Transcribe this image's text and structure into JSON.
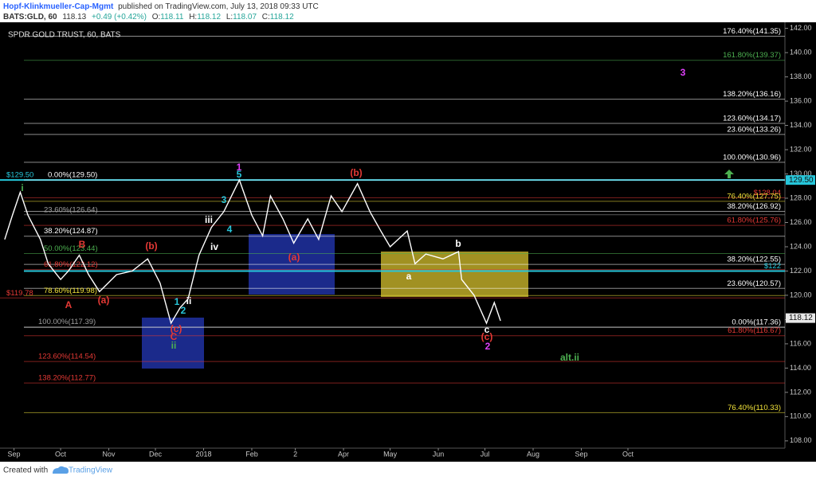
{
  "header": {
    "author": "Hopf-Klinkmueller-Cap-Mgmt",
    "published": "published on TradingView.com, July 13, 2018 09:33 UTC",
    "symbol": "BATS:GLD, 60",
    "last": "118.13",
    "change": "+0.49 (+0.42%)",
    "o_label": "O:",
    "open": "118.11",
    "h_label": "H:",
    "high": "118.12",
    "l_label": "L:",
    "low": "118.07",
    "c_label": "C:",
    "close": "118.12"
  },
  "footer": {
    "created_with": "Created with",
    "brand": "TradingView"
  },
  "chart_data": {
    "type": "line",
    "title": "SPDR GOLD TRUST, 60, BATS",
    "color": "#ffffff",
    "x": [
      -6,
      -1,
      4,
      9,
      17,
      22,
      30,
      35,
      42,
      48,
      55,
      66,
      76,
      86,
      94,
      101,
      107,
      112,
      119,
      127,
      135,
      145,
      153,
      160,
      165,
      173,
      180,
      189,
      196,
      204,
      211,
      221,
      229,
      236,
      242,
      253,
      258,
      265,
      276,
      286,
      288,
      296,
      304,
      309,
      313
    ],
    "values": [
      124.6,
      126.6,
      128.5,
      126.6,
      124.6,
      122.6,
      121.3,
      122.0,
      123.3,
      121.7,
      120.3,
      121.7,
      122.0,
      123.0,
      121.0,
      117.7,
      119.0,
      119.7,
      123.3,
      125.6,
      126.9,
      129.5,
      126.6,
      124.9,
      128.2,
      126.3,
      124.3,
      126.3,
      124.6,
      128.2,
      126.9,
      129.2,
      126.9,
      125.3,
      124.0,
      125.3,
      122.6,
      123.4,
      123.0,
      123.6,
      121.3,
      120.0,
      117.7,
      119.4,
      117.9
    ],
    "xlim": [
      -9,
      496
    ],
    "xticks": [
      {
        "value": 0,
        "label": "Sep"
      },
      {
        "value": 30,
        "label": "Oct"
      },
      {
        "value": 61,
        "label": "Nov"
      },
      {
        "value": 91,
        "label": "Dec"
      },
      {
        "value": 122,
        "label": "2018"
      },
      {
        "value": 153,
        "label": "Feb"
      },
      {
        "value": 181,
        "label": "2"
      },
      {
        "value": 212,
        "label": "Apr"
      },
      {
        "value": 242,
        "label": "May"
      },
      {
        "value": 273,
        "label": "Jun"
      },
      {
        "value": 303,
        "label": "Jul"
      },
      {
        "value": 334,
        "label": "Aug"
      },
      {
        "value": 365,
        "label": "Sep"
      },
      {
        "value": 395,
        "label": "Oct"
      }
    ],
    "ylim": [
      107.4,
      142.5
    ],
    "yticks": [
      {
        "value": 108,
        "label": "108.00"
      },
      {
        "value": 110,
        "label": "110.00"
      },
      {
        "value": 112,
        "label": "112.00"
      },
      {
        "value": 114,
        "label": "114.00"
      },
      {
        "value": 116,
        "label": "116.00"
      },
      {
        "value": 118,
        "label": "118.00"
      },
      {
        "value": 120,
        "label": "120.00"
      },
      {
        "value": 122,
        "label": "122.00"
      },
      {
        "value": 124,
        "label": "124.00"
      },
      {
        "value": 126,
        "label": "126.00"
      },
      {
        "value": 128,
        "label": "128.00"
      },
      {
        "value": 130,
        "label": "130.00"
      },
      {
        "value": 132,
        "label": "132.00"
      },
      {
        "value": 134,
        "label": "134.00"
      },
      {
        "value": 136,
        "label": "136.00"
      },
      {
        "value": 138,
        "label": "138.00"
      },
      {
        "value": 140,
        "label": "140.00"
      },
      {
        "value": 142,
        "label": "142.00"
      }
    ],
    "levels": [
      {
        "value": 141.35,
        "label": "176.40%(141.35)",
        "color": "#ffffff"
      },
      {
        "value": 139.37,
        "label": "161.80%(139.37)",
        "color": "#4caf50"
      },
      {
        "value": 136.16,
        "label": "138.20%(136.16)",
        "color": "#ffffff"
      },
      {
        "value": 134.17,
        "label": "123.60%(134.17)",
        "color": "#ffffff"
      },
      {
        "value": 133.26,
        "label": "23.60%(133.26)",
        "color": "#ffffff"
      },
      {
        "value": 130.96,
        "label": "100.00%(130.96)",
        "color": "#ffffff"
      },
      {
        "value": 129.5,
        "label": "$129.50",
        "color": "#26c6da"
      },
      {
        "value": 129.5,
        "label": "0.00%(129.50)",
        "color": "#ffffff"
      },
      {
        "value": 128.04,
        "label": "$128.04",
        "color": "#e53935"
      },
      {
        "value": 127.75,
        "label": "76.40%(127.75)",
        "color": "#f2e33a"
      },
      {
        "value": 126.92,
        "label": "38.20%(126.92)",
        "color": "#ffffff"
      },
      {
        "value": 126.64,
        "label": "23.60%(126.64)",
        "color": "#9e9e9e"
      },
      {
        "value": 125.76,
        "label": "61.80%(125.76)",
        "color": "#e53935"
      },
      {
        "value": 124.87,
        "label": "38.20%(124.87)",
        "color": "#ffffff"
      },
      {
        "value": 123.44,
        "label": "50.00%(123.44)",
        "color": "#4caf50"
      },
      {
        "value": 122.55,
        "label": "38.20%(122.55)",
        "color": "#ffffff"
      },
      {
        "value": 122.12,
        "label": "61.80%(122.12)",
        "color": "#e53935"
      },
      {
        "value": 122,
        "label": "$122",
        "color": "#26c6da"
      },
      {
        "value": 120.57,
        "label": "23.60%(120.57)",
        "color": "#ffffff"
      },
      {
        "value": 119.98,
        "label": "78.60%(119.98)",
        "color": "#f2e33a"
      },
      {
        "value": 119.78,
        "label": "$119.78",
        "color": "#e53935"
      },
      {
        "value": 117.39,
        "label": "100.00%(117.39)",
        "color": "#9e9e9e"
      },
      {
        "value": 117.36,
        "label": "0.00%(117.36)",
        "color": "#ffffff"
      },
      {
        "value": 116.67,
        "label": "61.80%(116.67)",
        "color": "#e53935"
      },
      {
        "value": 114.54,
        "label": "123.60%(114.54)",
        "color": "#e53935"
      },
      {
        "value": 112.77,
        "label": "138.20%(112.77)",
        "color": "#e53935"
      },
      {
        "value": 110.33,
        "label": "76.40%(110.33)",
        "color": "#f2e33a"
      }
    ],
    "waves": [
      {
        "label": "i",
        "color": "#4caf50"
      },
      {
        "label": "B",
        "color": "#e53935"
      },
      {
        "label": "A",
        "color": "#e53935"
      },
      {
        "label": "(a)",
        "color": "#e53935"
      },
      {
        "label": "(b)",
        "color": "#e53935"
      },
      {
        "label": "1",
        "color": "#26c6da"
      },
      {
        "label": "2",
        "color": "#26c6da"
      },
      {
        "label": "ii",
        "color": "#ffffff"
      },
      {
        "label": "(c)",
        "color": "#e53935"
      },
      {
        "label": "C",
        "color": "#e53935"
      },
      {
        "label": "ii",
        "color": "#4caf50"
      },
      {
        "label": "iii",
        "color": "#ffffff"
      },
      {
        "label": "3",
        "color": "#26c6da"
      },
      {
        "label": "4",
        "color": "#26c6da"
      },
      {
        "label": "iv",
        "color": "#ffffff"
      },
      {
        "label": "1",
        "color": "#e040fb"
      },
      {
        "label": "5",
        "color": "#26c6da"
      },
      {
        "label": "(a)",
        "color": "#e53935"
      },
      {
        "label": "(b)",
        "color": "#e53935"
      },
      {
        "label": "a",
        "color": "#ffffff"
      },
      {
        "label": "b",
        "color": "#ffffff"
      },
      {
        "label": "c",
        "color": "#ffffff"
      },
      {
        "label": "(c)",
        "color": "#e53935"
      },
      {
        "label": "2",
        "color": "#e040fb"
      },
      {
        "label": "3",
        "color": "#e040fb"
      },
      {
        "label": "alt.ii",
        "color": "#4caf50"
      }
    ],
    "price_tags": [
      {
        "value": 129.5,
        "label": "129.50",
        "color": "#26c6da"
      },
      {
        "value": 118.12,
        "label": "118.12",
        "color": "#e8e8e8"
      }
    ]
  }
}
